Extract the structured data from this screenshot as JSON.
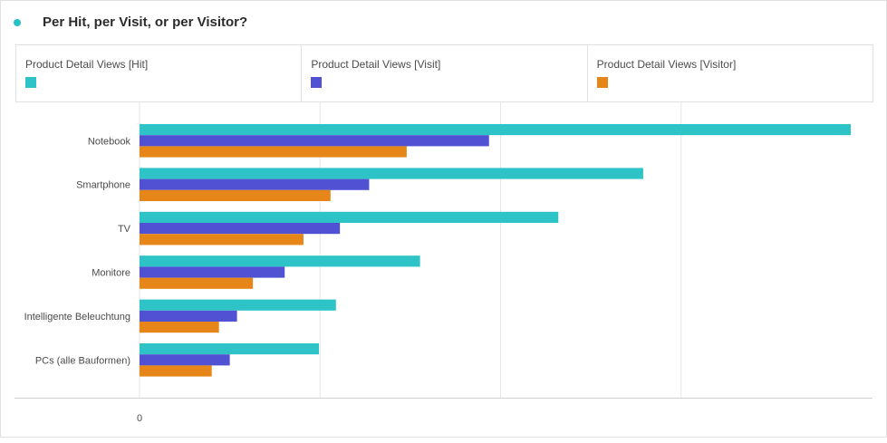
{
  "header": {
    "title": "Per Hit, per Visit, or per Visitor?"
  },
  "colors": {
    "dot": "#26c0c7",
    "hit": "#2ec3c6",
    "visit": "#5151d3",
    "visitor": "#e68619"
  },
  "chart_data": {
    "type": "bar",
    "orientation": "horizontal",
    "categories": [
      "Notebook",
      "Smartphone",
      "TV",
      "Monitore",
      "Intelligente Beleuchtung",
      "PCs (alle Bauformen)"
    ],
    "series": [
      {
        "name": "Product Detail Views [Hit]",
        "color": "#2ec3c6",
        "values": [
          1970,
          1395,
          1160,
          777,
          544,
          497
        ]
      },
      {
        "name": "Product Detail Views [Visit]",
        "color": "#5151d3",
        "values": [
          968,
          636,
          555,
          402,
          270,
          250
        ]
      },
      {
        "name": "Product Detail Views [Visitor]",
        "color": "#e68619",
        "values": [
          740,
          529,
          454,
          314,
          220,
          200
        ]
      }
    ],
    "xlim": [
      0,
      2000
    ],
    "x_ticks": [
      0
    ],
    "x_tick_labels": [
      "0"
    ],
    "gridlines": [
      0,
      500,
      1000,
      1500
    ],
    "grid": true,
    "legend": "top"
  }
}
